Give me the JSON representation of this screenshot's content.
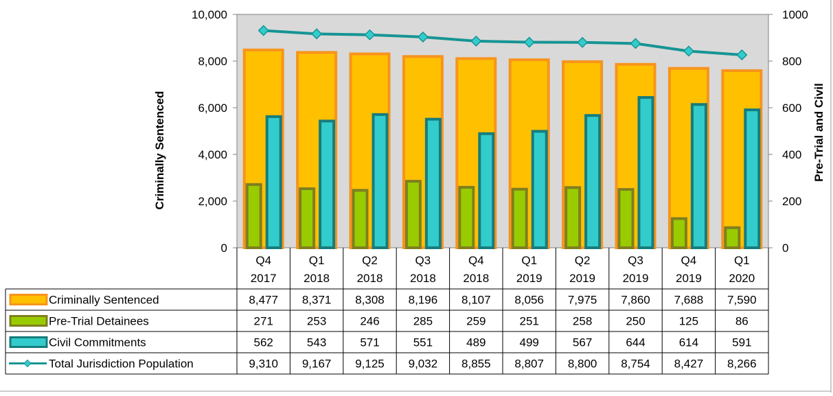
{
  "chart_data": {
    "type": "bar",
    "categories": [
      [
        "Q4",
        "2017"
      ],
      [
        "Q1",
        "2018"
      ],
      [
        "Q2",
        "2018"
      ],
      [
        "Q3",
        "2018"
      ],
      [
        "Q4",
        "2018"
      ],
      [
        "Q1",
        "2019"
      ],
      [
        "Q2",
        "2019"
      ],
      [
        "Q3",
        "2019"
      ],
      [
        "Q4",
        "2019"
      ],
      [
        "Q1",
        "2020"
      ]
    ],
    "series": [
      {
        "name": "Criminally Sentenced",
        "kind": "bar",
        "axis": "left",
        "color": "#ffc000",
        "stroke": "#f7941d",
        "values": [
          8477,
          8371,
          8308,
          8196,
          8107,
          8056,
          7975,
          7860,
          7688,
          7590
        ],
        "labels": [
          "8,477",
          "8,371",
          "8,308",
          "8,196",
          "8,107",
          "8,056",
          "7,975",
          "7,860",
          "7,688",
          "7,590"
        ]
      },
      {
        "name": "Pre-Trial Detainees",
        "kind": "bar",
        "axis": "right",
        "color": "#99cc00",
        "stroke": "#7f7f1f",
        "values": [
          271,
          253,
          246,
          285,
          259,
          251,
          258,
          250,
          125,
          86
        ],
        "labels": [
          "271",
          "253",
          "246",
          "285",
          "259",
          "251",
          "258",
          "250",
          "125",
          "86"
        ]
      },
      {
        "name": "Civil Commitments",
        "kind": "bar",
        "axis": "right",
        "color": "#33cccc",
        "stroke": "#167c7c",
        "values": [
          562,
          543,
          571,
          551,
          489,
          499,
          567,
          644,
          614,
          591
        ],
        "labels": [
          "562",
          "543",
          "571",
          "551",
          "489",
          "499",
          "567",
          "644",
          "614",
          "591"
        ]
      },
      {
        "name": "Total Jurisdiction Population",
        "kind": "line",
        "axis": "left",
        "color": "#169494",
        "marker": "#33cccc",
        "values": [
          9310,
          9167,
          9125,
          9032,
          8855,
          8807,
          8800,
          8754,
          8427,
          8266
        ],
        "labels": [
          "9,310",
          "9,167",
          "9,125",
          "9,032",
          "8,855",
          "8,807",
          "8,800",
          "8,754",
          "8,427",
          "8,266"
        ]
      }
    ],
    "y_left": {
      "label": "Criminally Sentenced",
      "range": [
        0,
        10000
      ],
      "ticks": [
        0,
        2000,
        4000,
        6000,
        8000,
        10000
      ],
      "tick_labels": [
        "0",
        "2,000",
        "4,000",
        "6,000",
        "8,000",
        "10,000"
      ]
    },
    "y_right": {
      "label": "Pre-Trial and Civil",
      "range": [
        0,
        1000
      ],
      "ticks": [
        0,
        200,
        400,
        600,
        800,
        1000
      ],
      "tick_labels": [
        "0",
        "200",
        "400",
        "600",
        "800",
        "1000"
      ]
    },
    "plot_background": "#d9d9d9",
    "grid": false,
    "legend": "data-table"
  }
}
